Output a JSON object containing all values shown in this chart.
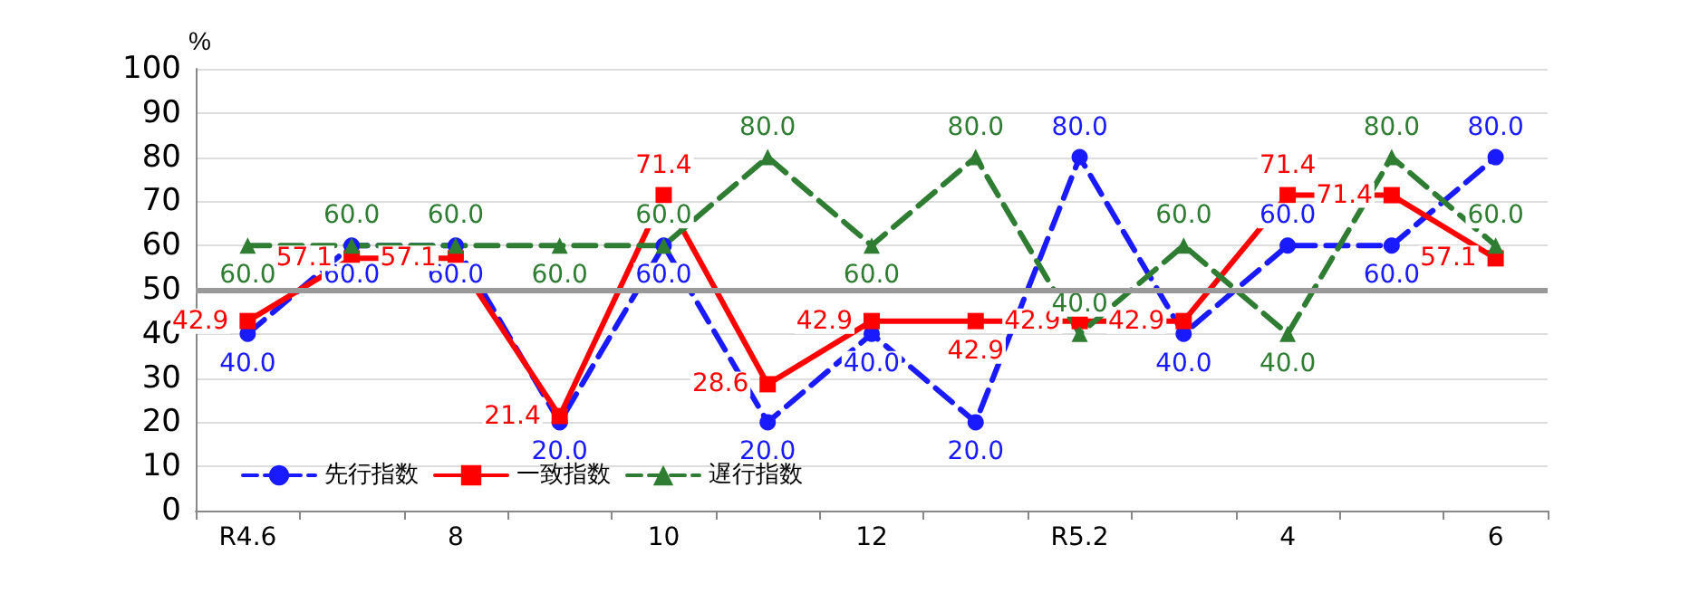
{
  "chart_data": {
    "type": "line",
    "ylabel": "%",
    "categories": [
      "R4.6",
      null,
      "8",
      null,
      "10",
      null,
      "12",
      null,
      "R5.2",
      null,
      "4",
      null,
      "6"
    ],
    "series": [
      {
        "name": "先行指数",
        "color": "#1a1aff",
        "marker": "circle",
        "line_style": "dashed",
        "values": [
          40,
          60,
          60,
          20,
          60,
          20,
          40,
          20,
          80,
          40,
          60,
          60,
          80
        ],
        "value_labels": [
          "40.0",
          "60.0",
          "60.0",
          "20.0",
          "60.0",
          "20.0",
          "40.0",
          "20.0",
          "80.0",
          "40.0",
          "60.0",
          "60.0",
          "80.0"
        ]
      },
      {
        "name": "一致指数",
        "color": "#ff0000",
        "marker": "square",
        "line_style": "solid",
        "values": [
          42.9,
          57.1,
          57.1,
          21.4,
          71.4,
          28.6,
          42.9,
          42.9,
          42.9,
          42.9,
          71.4,
          71.4,
          57.1
        ],
        "value_labels": [
          "42.9",
          "57.1",
          "57.1",
          "21.4",
          "71.4",
          "28.6",
          "42.9",
          "42.9",
          "42.9",
          "42.9",
          "71.4",
          "71.4",
          "57.1"
        ]
      },
      {
        "name": "遅行指数",
        "color": "#2e7d32",
        "marker": "triangle",
        "line_style": "dashed",
        "values": [
          60,
          60,
          60,
          60,
          60,
          80,
          60,
          80,
          40,
          60,
          40,
          80,
          60
        ],
        "value_labels": [
          "60.0",
          "60.0",
          "60.0",
          "60.0",
          "60.0",
          "80.0",
          "60.0",
          "80.0",
          "40.0",
          "60.0",
          "40.0",
          "80.0",
          "60.0"
        ]
      }
    ],
    "ylim": [
      0,
      100
    ],
    "yticks": [
      0,
      10,
      20,
      30,
      40,
      50,
      60,
      70,
      80,
      90,
      100
    ],
    "grid": "y",
    "legend": "bottom left",
    "ref_lines": [
      {
        "axis": "y",
        "value": 50,
        "color": "#999999"
      }
    ]
  }
}
